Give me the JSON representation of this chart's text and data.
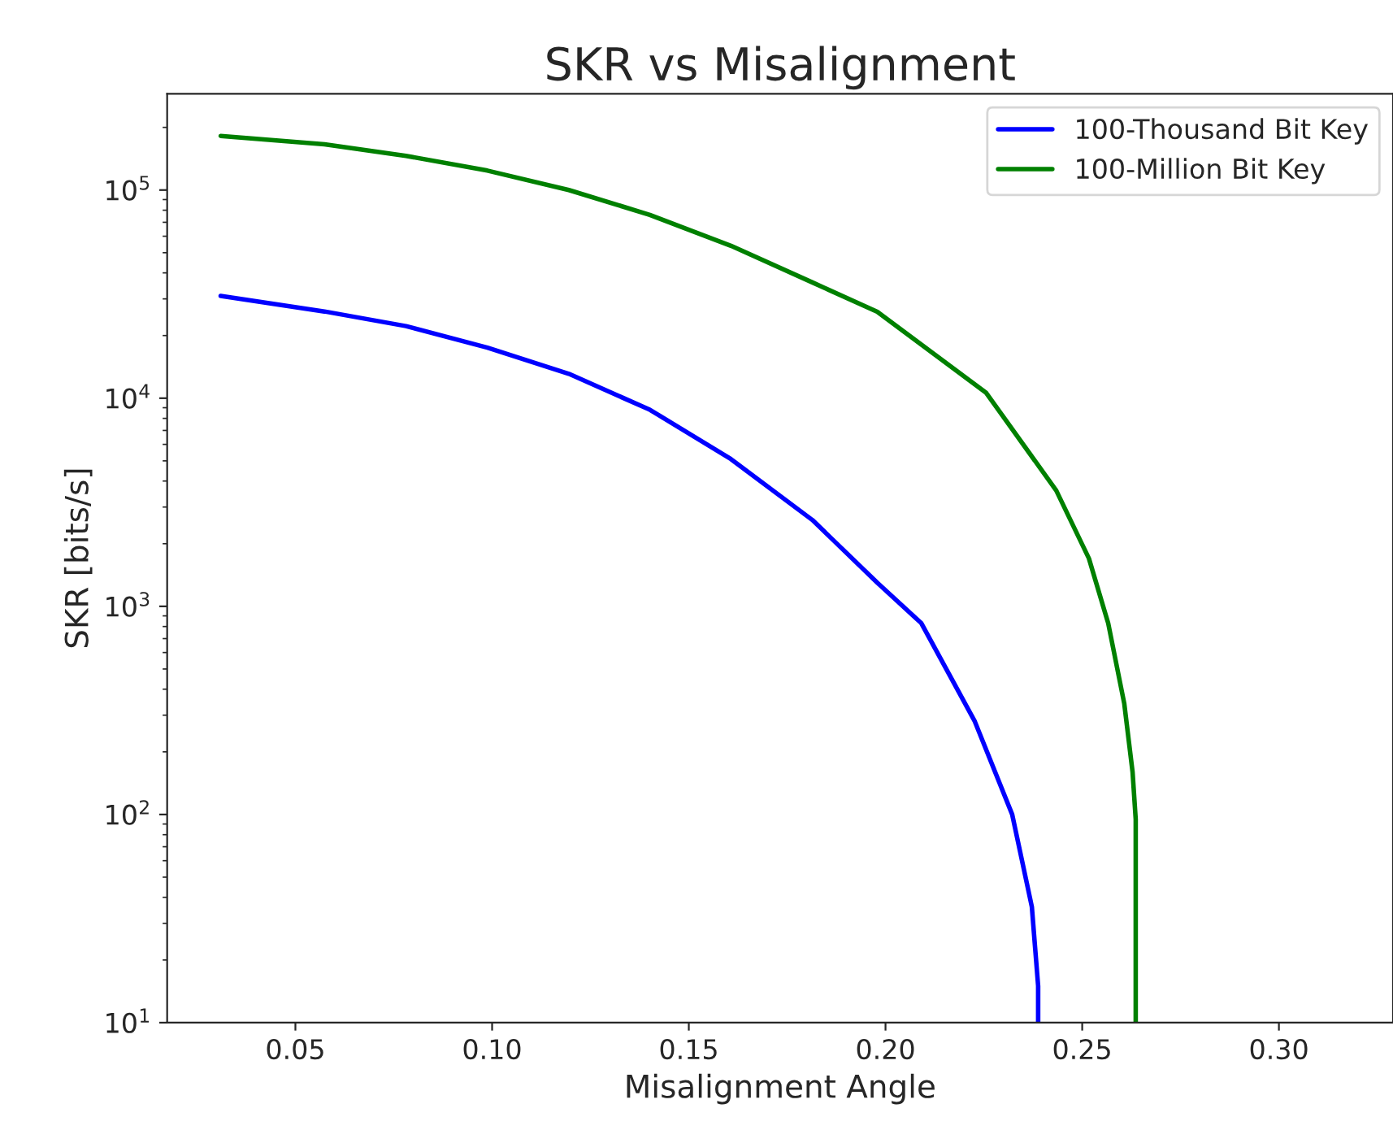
{
  "chart_data": {
    "type": "line",
    "title": "SKR vs Misalignment",
    "xlabel": "Misalignment Angle",
    "ylabel": "SKR [bits/s]",
    "log": "y",
    "xlim": [
      0.0174,
      0.329
    ],
    "ylim": [
      10,
      290000
    ],
    "xticks": [
      0.05,
      {
        "value": 0.1,
        "label": "0.10"
      },
      0.15,
      {
        "value": 0.2,
        "label": "0.20"
      },
      0.25,
      {
        "value": 0.3,
        "label": "0.30"
      }
    ],
    "yticks": [
      {
        "value": 10,
        "label": "10$^{1}$"
      },
      {
        "value": 100,
        "label": "10$^{2}$"
      },
      {
        "value": 1000,
        "label": "10$^{3}$"
      },
      {
        "value": 10000,
        "label": "10$^{4}$"
      },
      {
        "value": 100000,
        "label": "10$^{5}$"
      }
    ],
    "legend": "top right",
    "grid": false,
    "series": [
      {
        "name": "100-Thousand Bit Key",
        "color": "#0000ff",
        "x": [
          0.031,
          0.0574,
          0.0781,
          0.0988,
          0.1195,
          0.1401,
          0.1607,
          0.1814,
          0.1979,
          0.2091,
          0.2227,
          0.2322,
          0.2372,
          0.2388,
          0.2388
        ],
        "values": [
          31000,
          26100,
          22200,
          17500,
          13100,
          8800,
          5100,
          2600,
          1300,
          830,
          280,
          100,
          36,
          15,
          10
        ]
      },
      {
        "name": "100-Million Bit Key",
        "color": "#008000",
        "x": [
          0.031,
          0.0574,
          0.0781,
          0.0988,
          0.1195,
          0.1401,
          0.1607,
          0.1814,
          0.1979,
          0.2256,
          0.2434,
          0.2517,
          0.2566,
          0.2607,
          0.2628,
          0.2636,
          0.2636
        ],
        "values": [
          182000,
          166000,
          146000,
          124000,
          100000,
          76000,
          54000,
          36000,
          26000,
          10600,
          3600,
          1700,
          830,
          340,
          160,
          95,
          10
        ]
      }
    ]
  }
}
